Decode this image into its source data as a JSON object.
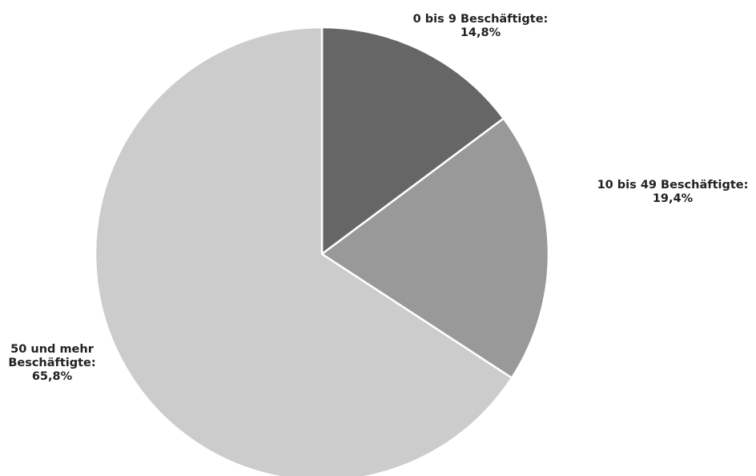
{
  "chart_data": {
    "type": "pie",
    "title": "",
    "start_angle_deg": 0,
    "direction": "clockwise",
    "slices": [
      {
        "label_lines": [
          "0 bis 9 Beschäftigte:"
        ],
        "value_text": "14,8%",
        "value": 14.8,
        "color": "#666666"
      },
      {
        "label_lines": [
          "10 bis 49 Beschäftigte:"
        ],
        "value_text": "19,4%",
        "value": 19.4,
        "color": "#999999"
      },
      {
        "label_lines": [
          "50 und mehr",
          "Beschäftigte:"
        ],
        "value_text": "65,8%",
        "value": 65.8,
        "color": "#cccccc"
      }
    ],
    "slice_border_color": "#ffffff",
    "legend": "none"
  }
}
